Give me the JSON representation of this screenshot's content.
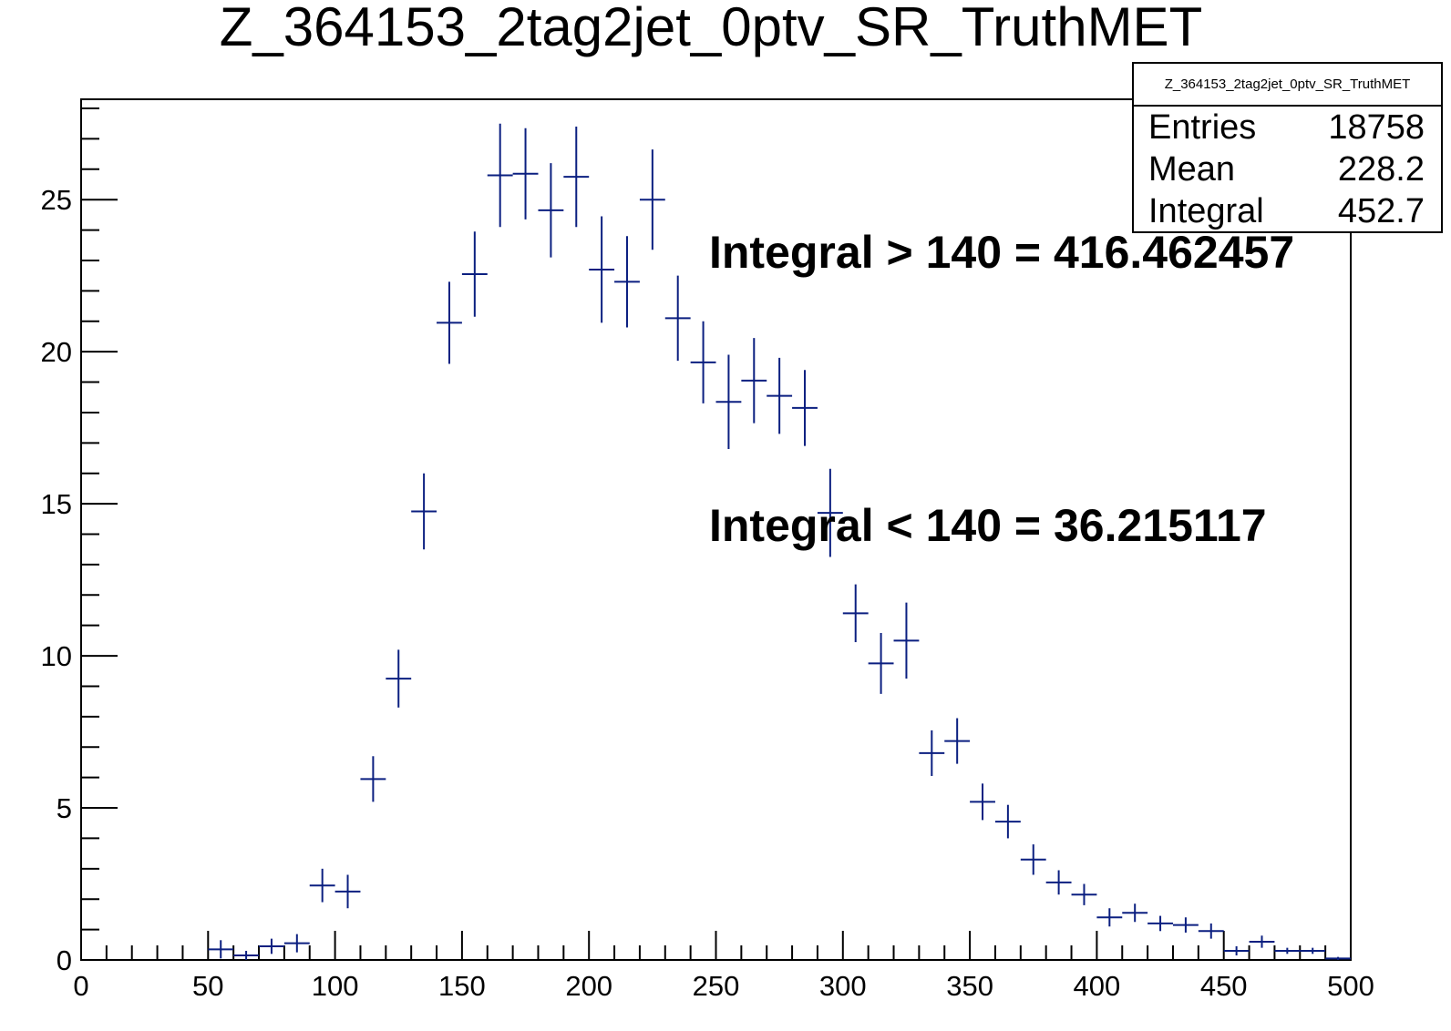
{
  "chart_data": {
    "type": "scatter",
    "style": "histogram-error-bars",
    "title": "Z_364153_2tag2jet_0ptv_SR_TruthMET",
    "xlabel": "",
    "ylabel": "",
    "xlim": [
      0,
      500
    ],
    "ylim": [
      0,
      28.3
    ],
    "xticks": [
      "0",
      "50",
      "100",
      "150",
      "200",
      "250",
      "300",
      "350",
      "400",
      "450",
      "500"
    ],
    "yticks": [
      "0",
      "5",
      "10",
      "15",
      "20",
      "25"
    ],
    "bin_width": 10,
    "x": [
      55,
      65,
      75,
      85,
      95,
      105,
      115,
      125,
      135,
      145,
      155,
      165,
      175,
      185,
      195,
      205,
      215,
      225,
      235,
      245,
      255,
      265,
      275,
      285,
      295,
      305,
      315,
      325,
      335,
      345,
      355,
      365,
      375,
      385,
      395,
      405,
      415,
      425,
      435,
      445,
      455,
      465,
      475,
      485,
      495
    ],
    "y": [
      0.35,
      0.15,
      0.45,
      0.55,
      2.45,
      2.25,
      5.95,
      9.25,
      14.75,
      20.95,
      22.55,
      25.8,
      25.85,
      24.65,
      25.75,
      22.7,
      22.3,
      25.0,
      21.1,
      19.65,
      18.35,
      19.05,
      18.55,
      18.15,
      14.7,
      11.4,
      9.75,
      10.5,
      6.8,
      7.2,
      5.2,
      4.55,
      3.3,
      2.55,
      2.15,
      1.4,
      1.55,
      1.2,
      1.15,
      0.95,
      0.3,
      0.6,
      0.3,
      0.3,
      0.05
    ],
    "yerr": [
      0.3,
      0.15,
      0.25,
      0.3,
      0.55,
      0.55,
      0.75,
      0.95,
      1.25,
      1.35,
      1.4,
      1.7,
      1.5,
      1.55,
      1.65,
      1.75,
      1.5,
      1.65,
      1.4,
      1.35,
      1.55,
      1.4,
      1.25,
      1.25,
      1.45,
      0.95,
      1.0,
      1.25,
      0.75,
      0.75,
      0.6,
      0.55,
      0.5,
      0.4,
      0.35,
      0.3,
      0.3,
      0.25,
      0.25,
      0.25,
      0.15,
      0.2,
      0.1,
      0.1,
      0.05
    ],
    "series_color": "#0b1f80",
    "stats": {
      "name": "Z_364153_2tag2jet_0ptv_SR_TruthMET",
      "rows": [
        {
          "label": "Entries",
          "value": "18758"
        },
        {
          "label": "Mean",
          "value": "228.2"
        },
        {
          "label": "Integral",
          "value": "452.7"
        }
      ]
    },
    "annotations": [
      "Integral > 140 = 416.462457",
      "Integral < 140 = 36.215117"
    ],
    "grid": false,
    "legend_position": "top-right"
  }
}
